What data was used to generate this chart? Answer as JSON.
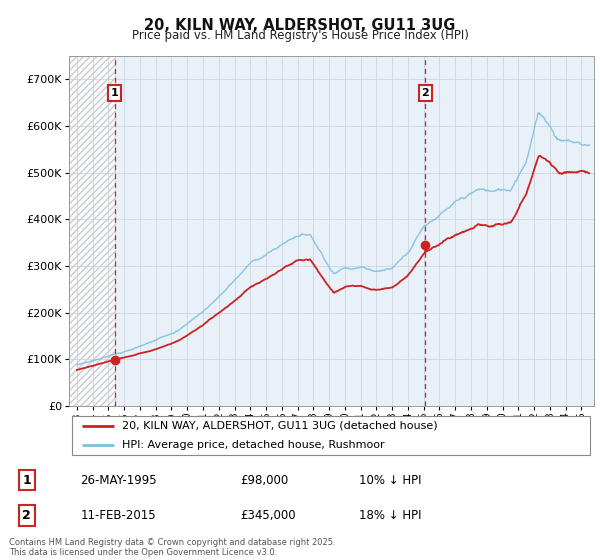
{
  "title": "20, KILN WAY, ALDERSHOT, GU11 3UG",
  "subtitle": "Price paid vs. HM Land Registry's House Price Index (HPI)",
  "ylim": [
    0,
    750000
  ],
  "yticks": [
    0,
    100000,
    200000,
    300000,
    400000,
    500000,
    600000,
    700000
  ],
  "ytick_labels": [
    "£0",
    "£100K",
    "£200K",
    "£300K",
    "£400K",
    "£500K",
    "£600K",
    "£700K"
  ],
  "sale1_date": 1995.4,
  "sale1_price": 98000,
  "sale1_label": "1",
  "sale2_date": 2015.11,
  "sale2_price": 345000,
  "sale2_label": "2",
  "hpi_line_color": "#7fbfdf",
  "price_line_color": "#cc2222",
  "plot_bg_color": "#e8f0f8",
  "grid_color": "#c8d0dc",
  "legend_label_price": "20, KILN WAY, ALDERSHOT, GU11 3UG (detached house)",
  "legend_label_hpi": "HPI: Average price, detached house, Rushmoor",
  "annotation1_date": "26-MAY-1995",
  "annotation1_price": "£98,000",
  "annotation1_hpi": "10% ↓ HPI",
  "annotation2_date": "11-FEB-2015",
  "annotation2_price": "£345,000",
  "annotation2_hpi": "18% ↓ HPI",
  "footer": "Contains HM Land Registry data © Crown copyright and database right 2025.\nThis data is licensed under the Open Government Licence v3.0.",
  "xmin": 1992.5,
  "xmax": 2025.8
}
